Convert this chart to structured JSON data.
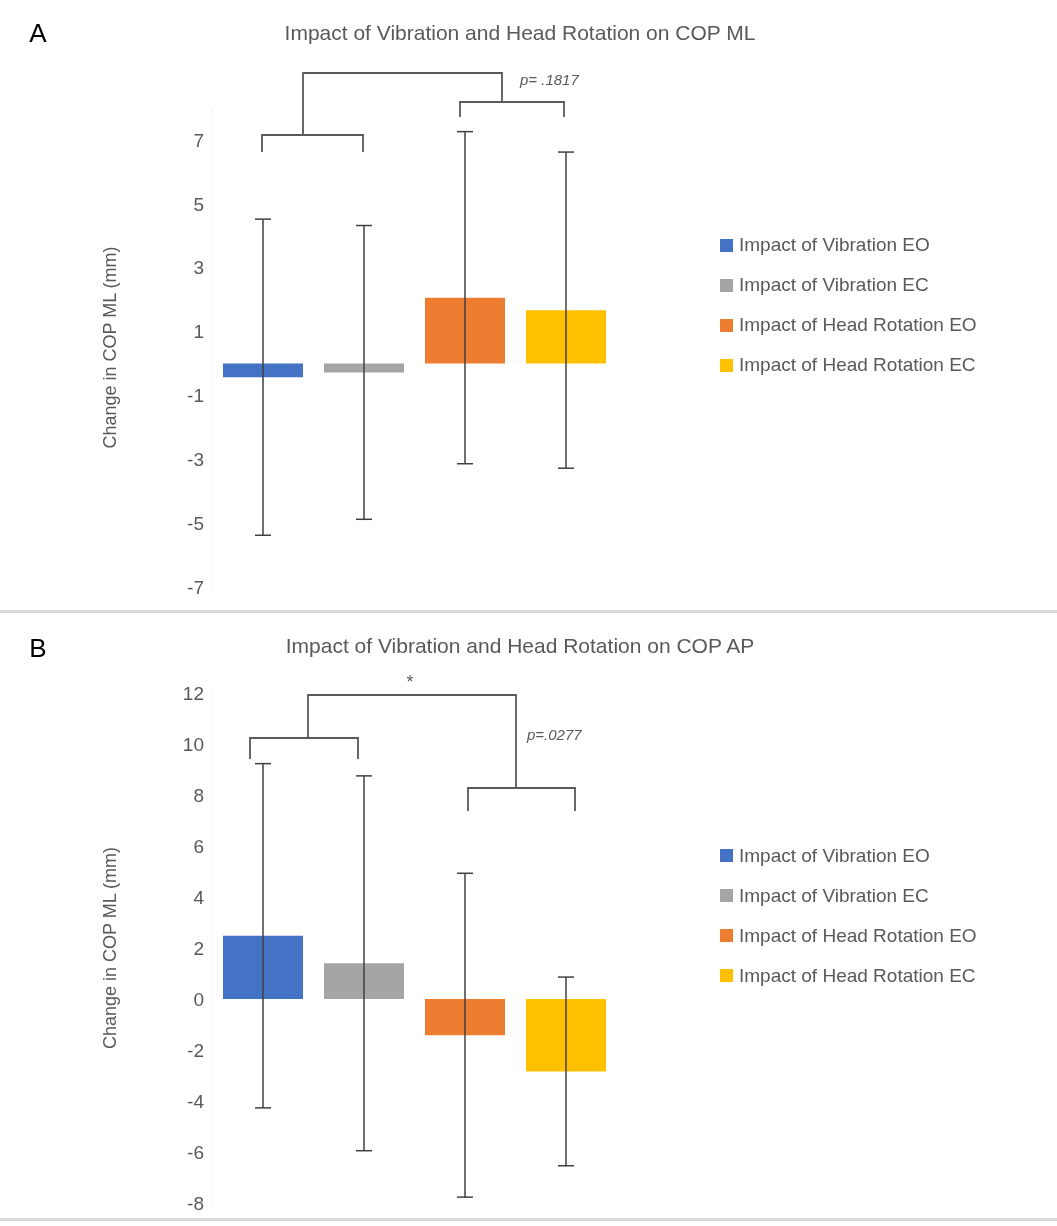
{
  "chart_data": [
    {
      "type": "bar",
      "title": "Impact of Vibration and Head Rotation on COP ML",
      "ylabel": "Change in COP ML (mm)",
      "categories": [
        null
      ],
      "series": [
        {
          "name": "Impact of Vibration EO",
          "color": "#4472c4",
          "values": [
            -0.43
          ],
          "errors": [
            4.95
          ]
        },
        {
          "name": "Impact of Vibration EC",
          "color": "#a5a5a5",
          "values": [
            -0.28
          ],
          "errors": [
            4.6
          ]
        },
        {
          "name": "Impact of Head Rotation EO",
          "color": "#ed7d31",
          "values": [
            2.06
          ],
          "errors": [
            5.2
          ]
        },
        {
          "name": "Impact of Head Rotation EC",
          "color": "#ffc000",
          "values": [
            1.67
          ],
          "errors": [
            4.95
          ]
        }
      ],
      "ylim": [
        -7,
        8
      ],
      "yticks": [
        -7,
        -5,
        -3,
        -1,
        1,
        3,
        5,
        7
      ],
      "grid": false,
      "legend": "right",
      "annotations": [
        "A",
        "p= .1817"
      ]
    },
    {
      "type": "bar",
      "title": "Impact of Vibration and Head Rotation on COP AP",
      "ylabel": "Change in COP ML (mm)",
      "categories": [
        null
      ],
      "series": [
        {
          "name": "Impact of Vibration EO",
          "color": "#4472c4",
          "values": [
            2.48
          ],
          "errors": [
            6.75
          ]
        },
        {
          "name": "Impact of Vibration EC",
          "color": "#a5a5a5",
          "values": [
            1.4
          ],
          "errors": [
            7.35
          ]
        },
        {
          "name": "Impact of Head Rotation EO",
          "color": "#ed7d31",
          "values": [
            -1.42
          ],
          "errors": [
            6.35
          ]
        },
        {
          "name": "Impact of Head Rotation EC",
          "color": "#ffc000",
          "values": [
            -2.84
          ],
          "errors": [
            3.7
          ]
        }
      ],
      "ylim": [
        -8,
        12
      ],
      "yticks": [
        -8,
        -6,
        -4,
        -2,
        0,
        2,
        4,
        6,
        8,
        10,
        12
      ],
      "grid": false,
      "legend": "right",
      "annotations": [
        "B",
        "*",
        "p=.0277"
      ]
    }
  ]
}
